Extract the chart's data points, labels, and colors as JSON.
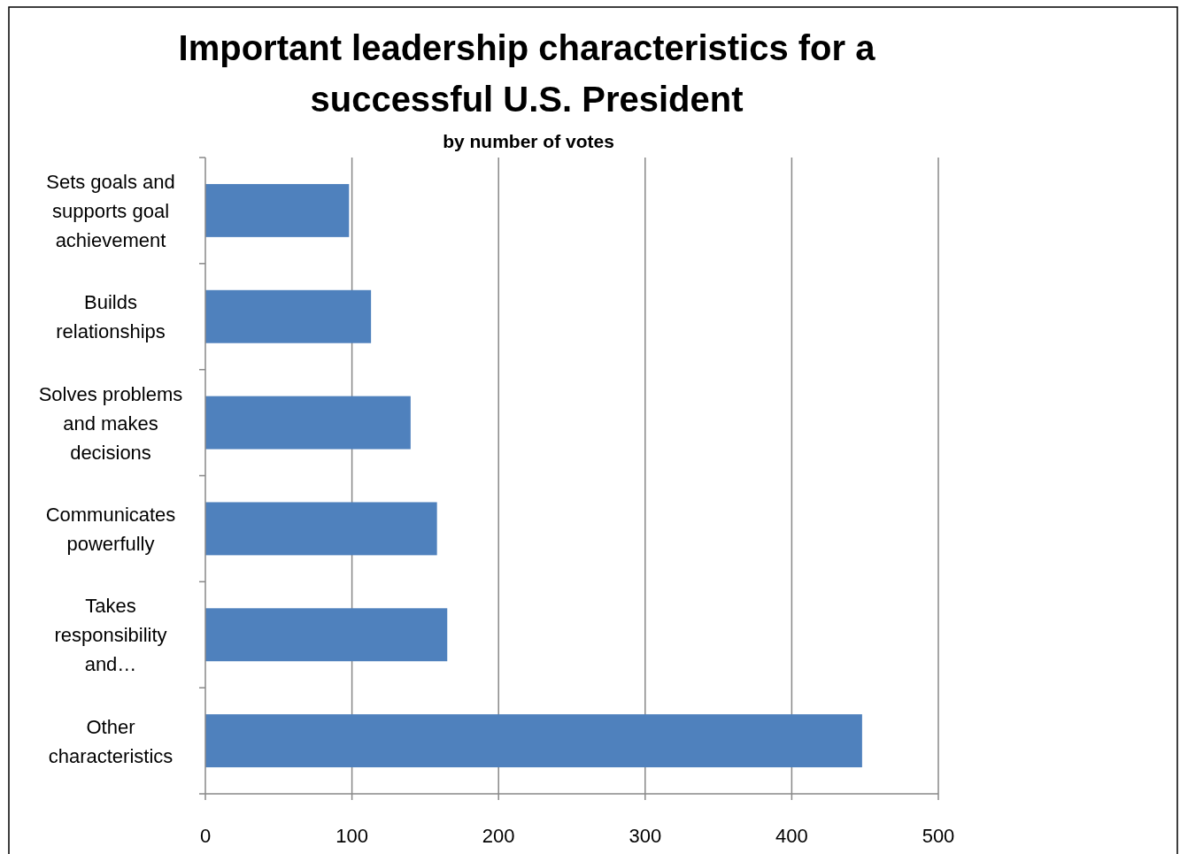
{
  "chart_data": {
    "type": "bar",
    "orientation": "horizontal",
    "title": "Important leadership characteristics for a successful U.S. President",
    "subtitle": "by number of votes",
    "categories": [
      "Sets goals and supports goal achievement",
      "Builds relationships",
      "Solves problems and makes decisions",
      "Communicates powerfully",
      "Takes responsibility and…",
      "Other characteristics"
    ],
    "values": [
      98,
      113,
      140,
      158,
      165,
      448
    ],
    "color": "#4f81bd",
    "xlim": [
      0,
      500
    ],
    "xticks": [
      0,
      100,
      200,
      300,
      400,
      500
    ],
    "grid": "x"
  }
}
